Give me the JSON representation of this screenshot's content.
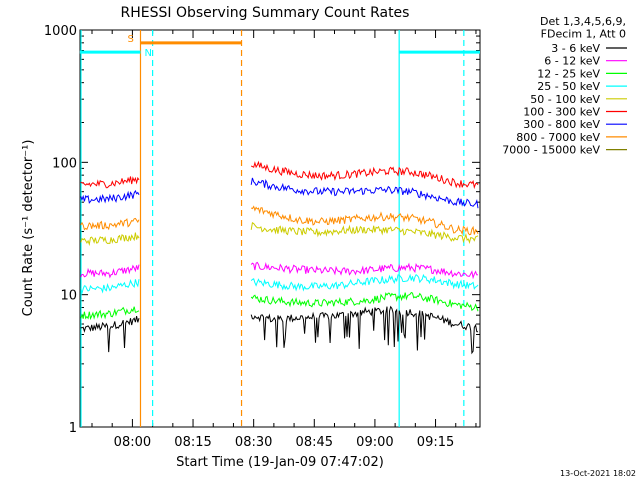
{
  "chart_data": {
    "type": "line",
    "title": "RHESSI Observing Summary Count Rates",
    "xlabel": "Start Time (19-Jan-09 07:47:02)",
    "ylabel": "Count Rate (s⁻¹ detector⁻¹)",
    "yscale": "log",
    "ylim": [
      1,
      1000
    ],
    "xlim": [
      "07:47:02",
      "09:26:00"
    ],
    "x_ticks": [
      "08:00",
      "08:15",
      "08:30",
      "08:45",
      "09:00",
      "09:15"
    ],
    "y_ticks": [
      "1",
      "10",
      "100",
      "1000"
    ],
    "grid": false,
    "legend_position": "top-right",
    "legend_header": [
      "Det 1,3,4,5,6,9,",
      "FDecim 1, Att 0"
    ],
    "footer_date": "13-Oct-2021 18:02",
    "gap": [
      "08:02",
      "08:29"
    ],
    "series": [
      {
        "name": "3 - 6 keV",
        "color": "#000000",
        "before": [
          5.5,
          5.8,
          6.5
        ],
        "after": [
          7.0,
          6.5,
          6.7,
          6.8,
          7.0,
          7.4,
          7.6,
          7.4,
          6.8,
          6.0,
          5.6
        ]
      },
      {
        "name": "6 - 12 keV",
        "color": "#ff00ff",
        "before": [
          14.5,
          14.5,
          16.0
        ],
        "after": [
          16.5,
          16.0,
          15.5,
          15.2,
          15.0,
          15.2,
          15.8,
          16.0,
          15.5,
          14.5,
          14.0
        ]
      },
      {
        "name": "12 - 25 keV",
        "color": "#00ff00",
        "before": [
          7.0,
          7.2,
          8.0
        ],
        "after": [
          9.5,
          9.0,
          8.7,
          8.6,
          8.8,
          9.0,
          9.6,
          9.8,
          9.2,
          8.4,
          8.0
        ]
      },
      {
        "name": "25 - 50 keV",
        "color": "#00ffff",
        "before": [
          11.0,
          11.2,
          12.5
        ],
        "after": [
          12.5,
          12.0,
          11.5,
          11.5,
          11.8,
          12.5,
          13.0,
          13.5,
          13.0,
          12.0,
          11.5
        ]
      },
      {
        "name": "50 - 100 keV",
        "color": "#cccc00",
        "before": [
          25.5,
          26.0,
          28.0
        ],
        "after": [
          33.0,
          31.0,
          30.0,
          29.5,
          30.5,
          31.0,
          31.0,
          30.0,
          28.5,
          27.0,
          26.0
        ]
      },
      {
        "name": "100 - 300 keV",
        "color": "#ff0000",
        "before": [
          68.0,
          69.0,
          75.0
        ],
        "after": [
          97.0,
          88.0,
          82.0,
          79.0,
          80.0,
          83.0,
          86.0,
          85.0,
          78.0,
          70.0,
          67.0
        ]
      },
      {
        "name": "300 - 800 keV",
        "color": "#0000ff",
        "before": [
          52.0,
          53.0,
          58.0
        ],
        "after": [
          72.0,
          66.0,
          62.0,
          60.0,
          60.0,
          61.0,
          62.0,
          60.0,
          55.0,
          50.0,
          48.0
        ]
      },
      {
        "name": "800 - 7000 keV",
        "color": "#ff8c00",
        "before": [
          33.0,
          33.5,
          36.0
        ],
        "after": [
          45.0,
          41.0,
          37.0,
          35.5,
          36.5,
          38.0,
          39.0,
          38.0,
          35.0,
          31.0,
          30.0
        ]
      },
      {
        "name": "7000 - 15000 keV",
        "color": "#808000",
        "before": [],
        "after": []
      }
    ],
    "flags": [
      {
        "label": "S",
        "color": "#ff8c00",
        "x_start": "08:02",
        "x_end": "08:27",
        "level": 800
      },
      {
        "label": "N",
        "color": "#00ffff",
        "x_start": "07:47",
        "x_end": "08:02",
        "level": 680
      },
      {
        "label": "",
        "color": "#00ffff",
        "x_start": "09:06",
        "x_end": "09:26",
        "level": 680
      }
    ]
  }
}
